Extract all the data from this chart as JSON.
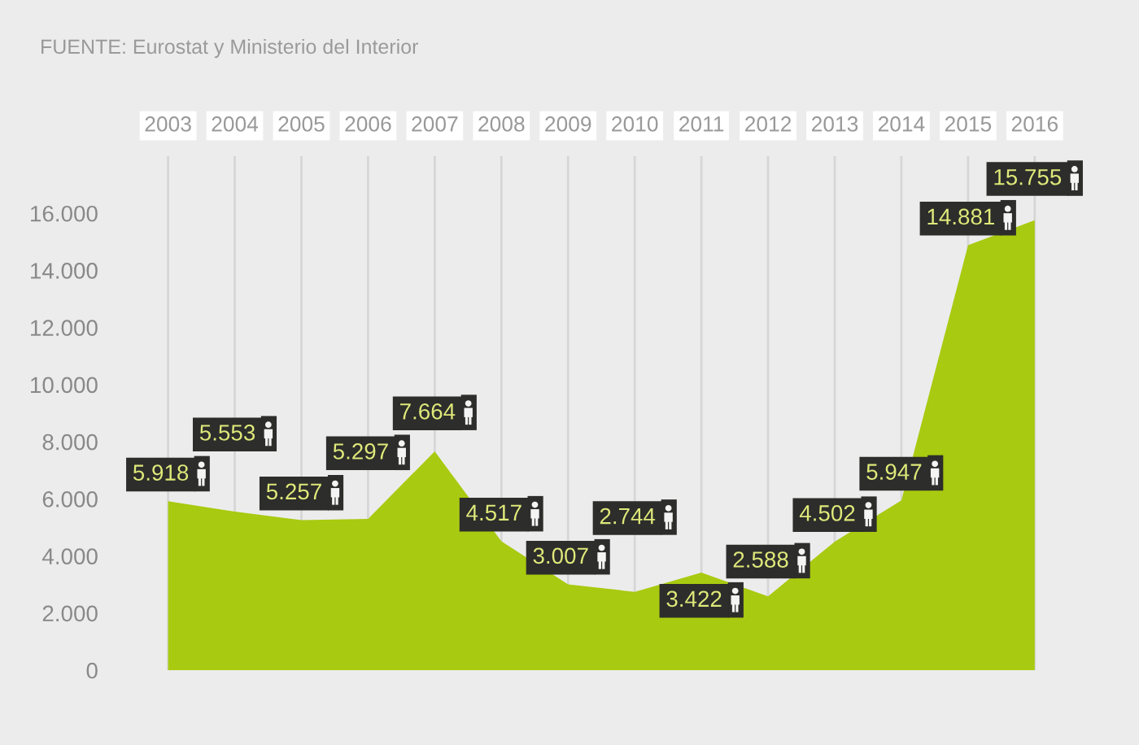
{
  "chart_data": {
    "type": "area",
    "annotations": [
      "FUENTE: Eurostat y Ministerio del Interior"
    ],
    "categories": [
      "2003",
      "2004",
      "2005",
      "2006",
      "2007",
      "2008",
      "2009",
      "2010",
      "2011",
      "2012",
      "2013",
      "2014",
      "2015",
      "2016"
    ],
    "values": [
      5918,
      5553,
      5257,
      5297,
      7664,
      4517,
      3007,
      2744,
      3422,
      2588,
      4502,
      5947,
      14881,
      15755
    ],
    "value_labels": [
      "5.918",
      "5.553",
      "5.257",
      "5.297",
      "7.664",
      "4.517",
      "3.007",
      "2.744",
      "3.422",
      "2.588",
      "4.502",
      "5.947",
      "14.881",
      "15.755"
    ],
    "color": "#a8ca10",
    "ylim": [
      0,
      18000
    ],
    "yticks": [
      0,
      {
        "value": 2000,
        "label": "2.000"
      },
      {
        "value": 4000,
        "label": "4.000"
      },
      {
        "value": 6000,
        "label": "6.000"
      },
      {
        "value": 8000,
        "label": "8.000"
      },
      {
        "value": 10000,
        "label": "10.000"
      },
      {
        "value": 12000,
        "label": "12.000"
      },
      {
        "value": 14000,
        "label": "14.000"
      },
      {
        "value": 16000,
        "label": "16.000"
      }
    ],
    "grid": "x"
  }
}
